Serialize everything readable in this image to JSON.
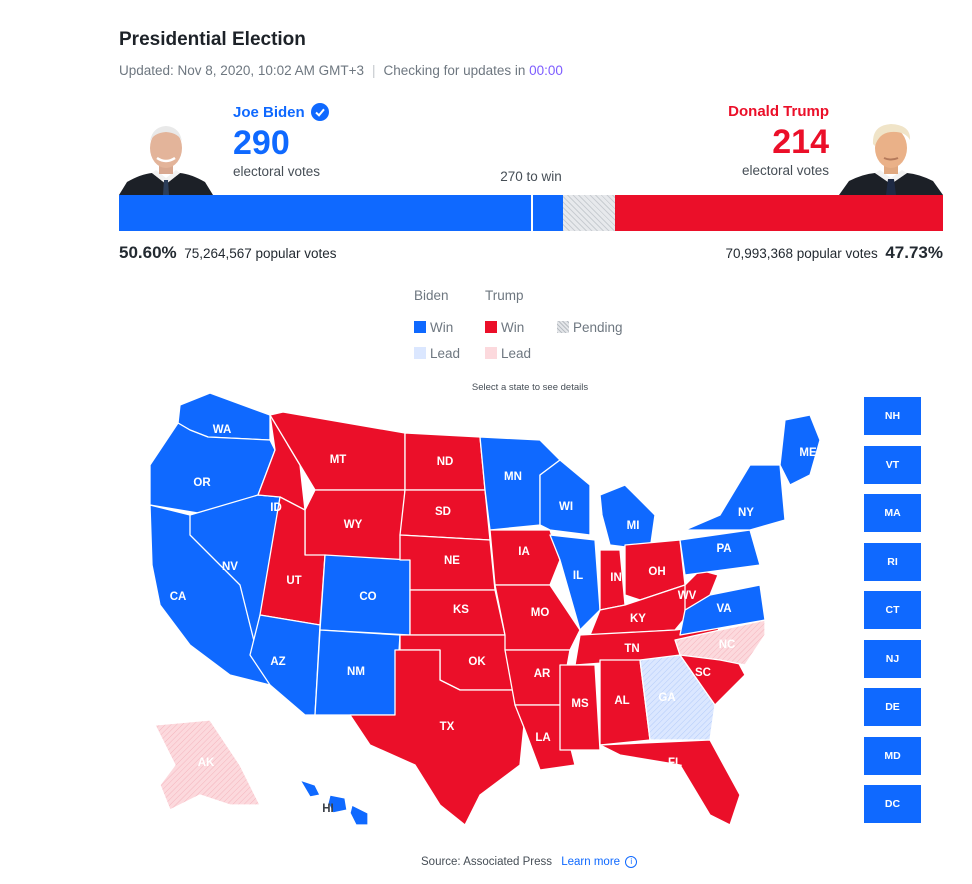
{
  "header": {
    "title": "Presidential Election",
    "updated": "Updated: Nov 8, 2020, 10:02 AM GMT+3",
    "checking": "Checking for updates in",
    "timer": "00:00"
  },
  "candidates": {
    "biden": {
      "name": "Joe Biden",
      "electoral_votes": "290",
      "ev_label": "electoral votes",
      "percent": "50.60%",
      "popular": "75,264,567 popular votes",
      "verified_icon": "check-circle-icon",
      "color": "#0f69ff"
    },
    "trump": {
      "name": "Donald Trump",
      "electoral_votes": "214",
      "ev_label": "electoral votes",
      "percent": "47.73%",
      "popular": "70,993,368 popular votes",
      "color": "#eb0f29"
    }
  },
  "bar": {
    "to_win": "270 to win",
    "biden_ev": 290,
    "trump_ev": 214,
    "pending_ev": 34,
    "total_ev": 538
  },
  "legend": {
    "biden_header": "Biden",
    "trump_header": "Trump",
    "win": "Win",
    "lead": "Lead",
    "pending": "Pending"
  },
  "hint": "Select a state to see details",
  "colors": {
    "biden_win": "#0f69ff",
    "biden_lead": "#dbe7ff",
    "trump_win": "#eb0f29",
    "trump_lead": "#fcd9dd",
    "pending": "#d5d9dd"
  },
  "states": [
    {
      "abbr": "WA",
      "status": "biden_win"
    },
    {
      "abbr": "OR",
      "status": "biden_win"
    },
    {
      "abbr": "CA",
      "status": "biden_win"
    },
    {
      "abbr": "NV",
      "status": "biden_win"
    },
    {
      "abbr": "ID",
      "status": "trump_win"
    },
    {
      "abbr": "MT",
      "status": "trump_win"
    },
    {
      "abbr": "WY",
      "status": "trump_win"
    },
    {
      "abbr": "UT",
      "status": "trump_win"
    },
    {
      "abbr": "AZ",
      "status": "biden_win"
    },
    {
      "abbr": "CO",
      "status": "biden_win"
    },
    {
      "abbr": "NM",
      "status": "biden_win"
    },
    {
      "abbr": "ND",
      "status": "trump_win"
    },
    {
      "abbr": "SD",
      "status": "trump_win"
    },
    {
      "abbr": "NE",
      "status": "trump_win"
    },
    {
      "abbr": "KS",
      "status": "trump_win"
    },
    {
      "abbr": "OK",
      "status": "trump_win"
    },
    {
      "abbr": "TX",
      "status": "trump_win"
    },
    {
      "abbr": "MN",
      "status": "biden_win"
    },
    {
      "abbr": "IA",
      "status": "trump_win"
    },
    {
      "abbr": "MO",
      "status": "trump_win"
    },
    {
      "abbr": "AR",
      "status": "trump_win"
    },
    {
      "abbr": "LA",
      "status": "trump_win"
    },
    {
      "abbr": "WI",
      "status": "biden_win"
    },
    {
      "abbr": "IL",
      "status": "biden_win"
    },
    {
      "abbr": "MI",
      "status": "biden_win"
    },
    {
      "abbr": "IN",
      "status": "trump_win"
    },
    {
      "abbr": "OH",
      "status": "trump_win"
    },
    {
      "abbr": "KY",
      "status": "trump_win"
    },
    {
      "abbr": "TN",
      "status": "trump_win"
    },
    {
      "abbr": "MS",
      "status": "trump_win"
    },
    {
      "abbr": "AL",
      "status": "trump_win"
    },
    {
      "abbr": "GA",
      "status": "biden_lead"
    },
    {
      "abbr": "FL",
      "status": "trump_win"
    },
    {
      "abbr": "SC",
      "status": "trump_win"
    },
    {
      "abbr": "NC",
      "status": "trump_lead"
    },
    {
      "abbr": "VA",
      "status": "biden_win"
    },
    {
      "abbr": "WV",
      "status": "trump_win"
    },
    {
      "abbr": "PA",
      "status": "biden_win"
    },
    {
      "abbr": "NY",
      "status": "biden_win"
    },
    {
      "abbr": "ME",
      "status": "biden_win"
    },
    {
      "abbr": "AK",
      "status": "trump_lead"
    },
    {
      "abbr": "HI",
      "status": "biden_win"
    }
  ],
  "small_states": [
    "NH",
    "VT",
    "MA",
    "RI",
    "CT",
    "NJ",
    "DE",
    "MD",
    "DC"
  ],
  "footer": {
    "source": "Source: Associated Press",
    "learn_more": "Learn more",
    "info_icon": "info-icon"
  }
}
